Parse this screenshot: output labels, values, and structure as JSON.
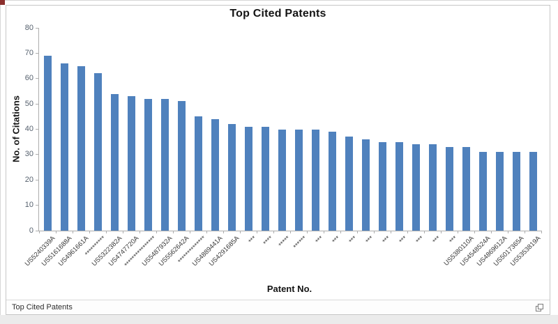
{
  "title": "Top Cited Patents",
  "chart_data": {
    "type": "bar",
    "title": "Top Cited Patents",
    "xlabel": "Patent No.",
    "ylabel": "No. of Citations",
    "ylim": [
      0,
      80
    ],
    "ytick_step": 10,
    "yticks": [
      0,
      10,
      20,
      30,
      40,
      50,
      60,
      70,
      80
    ],
    "grid": false,
    "legend": "none",
    "bar_color": "#4F81BD",
    "categories": [
      "US5240339A",
      "US5161688A",
      "US4961661A",
      "**********",
      "US5322382A",
      "US4747720A",
      "****************",
      "US5487932A",
      "US5562642A",
      "**************",
      "US4889441A",
      "US4291685A",
      "***",
      "****",
      "*****",
      "******",
      "***",
      "***",
      "***",
      "***",
      "***",
      "***",
      "***",
      "***",
      "***",
      "US5380110A",
      "US4548524A",
      "US4869612A",
      "US5017365A",
      "US5353819A"
    ],
    "values": [
      69,
      66,
      65,
      62,
      54,
      53,
      52,
      52,
      51,
      45,
      44,
      42,
      41,
      41,
      40,
      40,
      40,
      39,
      37,
      36,
      35,
      35,
      34,
      34,
      33,
      33,
      31,
      31,
      31,
      31
    ]
  },
  "footer": {
    "label": "Top Cited Patents",
    "icon": "popout-icon"
  },
  "colors": {
    "bar": "#4F81BD",
    "axis": "#adadad",
    "y_tick_text": "#56616E",
    "category_text": "#3a3a3a",
    "title_text": "#141414",
    "panel_border": "#c6c6c6",
    "corner_accent": "#8B2F2D"
  }
}
